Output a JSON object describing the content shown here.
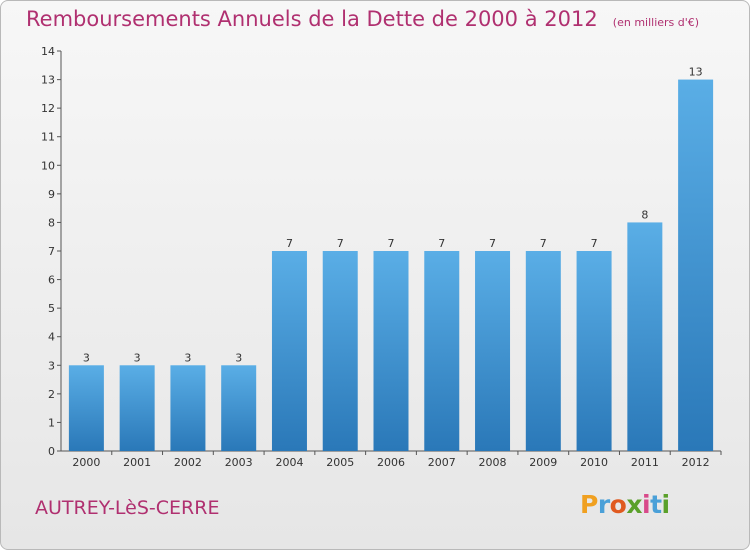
{
  "header": {
    "title": "Remboursements Annuels de la Dette de 2000 à 2012",
    "unit": "(en milliers d'€)"
  },
  "footer": {
    "commune": "AUTREY-LèS-CERRE",
    "logo_letters": [
      "P",
      "r",
      "o",
      "x",
      "i",
      "t",
      "i"
    ]
  },
  "colors": {
    "bar_light": "#5aaee6",
    "bar_dark": "#2a78b8",
    "title": "#b03070",
    "axis": "#555555"
  },
  "chart_data": {
    "type": "bar",
    "title": "Remboursements Annuels de la Dette de 2000 à 2012",
    "subtitle": "(en milliers d'€)",
    "categories": [
      "2000",
      "2001",
      "2002",
      "2003",
      "2004",
      "2005",
      "2006",
      "2007",
      "2008",
      "2009",
      "2010",
      "2011",
      "2012"
    ],
    "values": [
      3,
      3,
      3,
      3,
      7,
      7,
      7,
      7,
      7,
      7,
      7,
      8,
      13
    ],
    "data_labels": [
      "3",
      "3",
      "3",
      "3",
      "7",
      "7",
      "7",
      "7",
      "7",
      "7",
      "7",
      "8",
      "13"
    ],
    "yticks": [
      "0",
      "1",
      "2",
      "3",
      "4",
      "5",
      "6",
      "7",
      "8",
      "9",
      "10",
      "11",
      "12",
      "13",
      "14"
    ],
    "ylim": [
      0,
      14
    ],
    "xlabel": "",
    "ylabel": "",
    "grid": false
  }
}
